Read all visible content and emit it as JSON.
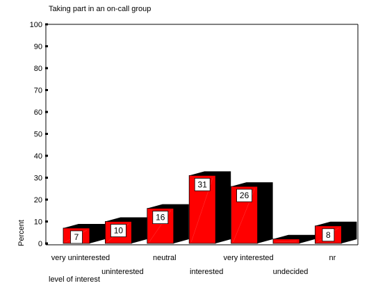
{
  "chart_data": {
    "type": "bar",
    "title": "Taking part in an on-call group",
    "xlabel": "level of interest",
    "ylabel": "Percent",
    "ylim": [
      0,
      100
    ],
    "yticks": [
      0,
      10,
      20,
      30,
      40,
      50,
      60,
      70,
      80,
      90,
      100
    ],
    "categories": [
      "very uninterested",
      "uninterested",
      "neutral",
      "interested",
      "very interested",
      "undecided",
      "nr"
    ],
    "values": [
      7,
      10,
      16,
      31,
      26,
      2,
      8
    ],
    "data_labels": [
      "7",
      "10",
      "16",
      "31",
      "26",
      "",
      "8"
    ],
    "grid": false,
    "legend": "none",
    "bar_color": "#ff0000",
    "shadow_color": "#000000",
    "style": "3d-bars"
  }
}
